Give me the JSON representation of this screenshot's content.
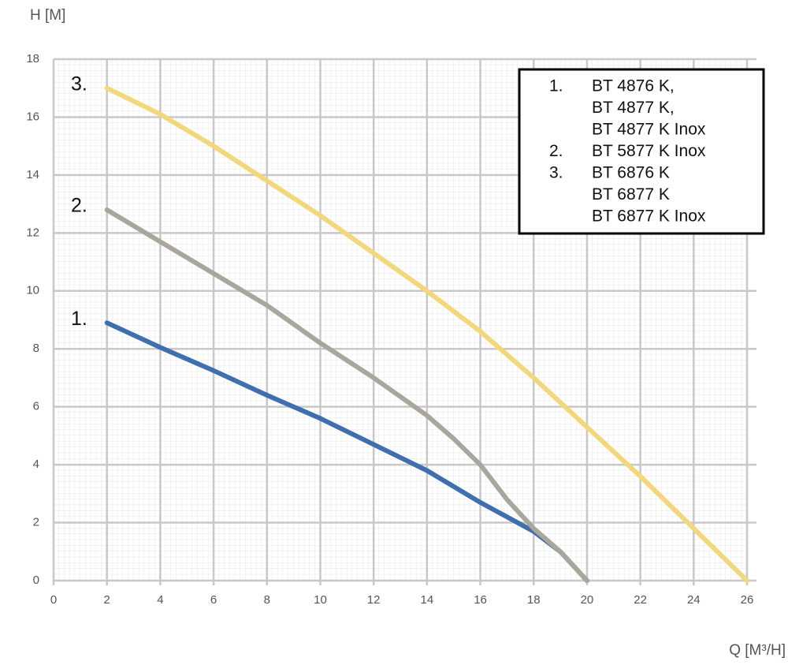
{
  "chart_data": {
    "type": "line",
    "y_label": "H [M]",
    "x_label": "Q [M³/H]",
    "xlim": [
      0,
      26
    ],
    "xticks": [
      0,
      2,
      4,
      6,
      8,
      10,
      12,
      14,
      16,
      18,
      20,
      22,
      24,
      26
    ],
    "ylim": [
      0,
      18
    ],
    "yticks": [
      0,
      2,
      4,
      6,
      8,
      10,
      12,
      14,
      16,
      18
    ],
    "grid": true,
    "series": [
      {
        "name": "1.",
        "color": "#3f6fae",
        "x": [
          2,
          4,
          6,
          8,
          10,
          12,
          14,
          16,
          18,
          19,
          19.5,
          20
        ],
        "values": [
          8.9,
          8.05,
          7.25,
          6.4,
          5.6,
          4.7,
          3.8,
          2.7,
          1.7,
          1.0,
          0.5,
          0
        ]
      },
      {
        "name": "2.",
        "color": "#a9a79c",
        "x": [
          2,
          4,
          6,
          8,
          10,
          12,
          14,
          15,
          16,
          17,
          18,
          19,
          20
        ],
        "values": [
          12.8,
          11.7,
          10.6,
          9.5,
          8.2,
          7.0,
          5.7,
          4.9,
          4.0,
          2.8,
          1.8,
          1.0,
          0
        ]
      },
      {
        "name": "3.",
        "color": "#f2d87a",
        "x": [
          2,
          4,
          6,
          8,
          10,
          12,
          14,
          16,
          18,
          20,
          22,
          24,
          26
        ],
        "values": [
          17.0,
          16.1,
          15.0,
          13.8,
          12.6,
          11.3,
          10.0,
          8.6,
          7.0,
          5.3,
          3.6,
          1.8,
          0
        ]
      }
    ],
    "legend_box": [
      {
        "number": "1.",
        "lines": [
          "BT 4876 K,",
          "BT 4877 K,",
          "BT 4877 K Inox"
        ]
      },
      {
        "number": "2.",
        "lines": [
          "BT 5877 K Inox"
        ]
      },
      {
        "number": "3.",
        "lines": [
          "BT 6876 K",
          "BT 6877 K",
          "BT 6877 K Inox"
        ]
      }
    ]
  }
}
